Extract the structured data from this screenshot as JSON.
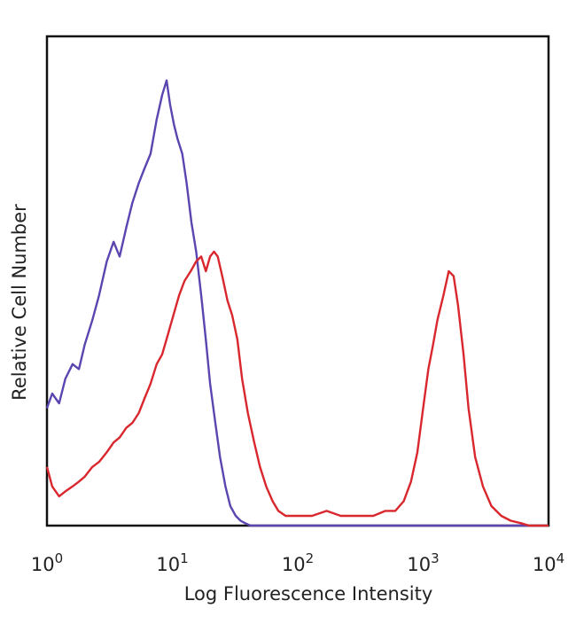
{
  "chart_data": {
    "type": "line",
    "title": "",
    "xlabel": "Log Fluorescence Intensity",
    "ylabel": "Relative Cell Number",
    "x_scale": "log",
    "xlim": [
      1,
      10000
    ],
    "ylim": [
      0,
      100
    ],
    "x_ticks": [
      {
        "base": "10",
        "exp": "0"
      },
      {
        "base": "10",
        "exp": "1"
      },
      {
        "base": "10",
        "exp": "2"
      },
      {
        "base": "10",
        "exp": "3"
      },
      {
        "base": "10",
        "exp": "4"
      }
    ],
    "grid": false,
    "legend": "none",
    "series": [
      {
        "color": "#5b45b0",
        "x": [
          1.0,
          1.1,
          1.25,
          1.4,
          1.6,
          1.8,
          2.0,
          2.3,
          2.6,
          3.0,
          3.4,
          3.8,
          4.3,
          4.8,
          5.4,
          6.0,
          6.7,
          7.5,
          8.3,
          9.0,
          9.6,
          10.3,
          11.0,
          12.0,
          13.0,
          14.2,
          15.5,
          17.0,
          18.5,
          20.0,
          22.0,
          24.0,
          26.5,
          29.0,
          32.0,
          35.0,
          38.0,
          42.0,
          50.0,
          100.0,
          1000.0,
          10000.0
        ],
        "y": [
          24,
          27,
          25,
          30,
          33,
          32,
          37,
          42,
          47,
          54,
          58,
          55,
          61,
          66,
          70,
          73,
          76,
          83,
          88,
          91,
          86,
          82,
          79,
          76,
          70,
          62,
          56,
          47,
          38,
          29,
          21,
          14,
          8,
          4,
          2,
          1,
          0.5,
          0,
          0,
          0,
          0,
          0
        ]
      },
      {
        "color": "#d9272e",
        "x": [
          1.0,
          1.1,
          1.25,
          1.4,
          1.6,
          1.8,
          2.0,
          2.3,
          2.6,
          3.0,
          3.4,
          3.8,
          4.3,
          4.8,
          5.4,
          6.0,
          6.7,
          7.5,
          8.3,
          9.2,
          10.2,
          11.3,
          12.5,
          14.0,
          15.5,
          17.0,
          18.5,
          20.0,
          21.5,
          23.0,
          25.0,
          27.5,
          30.0,
          33.0,
          36.0,
          40.0,
          45.0,
          50.0,
          56.0,
          63.0,
          70.0,
          80.0,
          100.0,
          130.0,
          170.0,
          220.0,
          300.0,
          400.0,
          500.0,
          600.0,
          700.0,
          800.0,
          900.0,
          1000.0,
          1100.0,
          1200.0,
          1300.0,
          1450.0,
          1600.0,
          1750.0,
          1900.0,
          2100.0,
          2300.0,
          2600.0,
          3000.0,
          3500.0,
          4200.0,
          5000.0,
          6000.0,
          7000.0,
          8000.0,
          10000.0
        ],
        "y": [
          12,
          8,
          6,
          7,
          8,
          9,
          10,
          12,
          13,
          15,
          17,
          18,
          20,
          21,
          23,
          26,
          29,
          33,
          35,
          39,
          43,
          47,
          50,
          52,
          54,
          55,
          52,
          55,
          56,
          55,
          51,
          46,
          43,
          38,
          30,
          23,
          17,
          12,
          8,
          5,
          3,
          2,
          2,
          2,
          3,
          2,
          2,
          2,
          3,
          3,
          5,
          9,
          15,
          24,
          32,
          37,
          42,
          47,
          52,
          51,
          45,
          35,
          24,
          14,
          8,
          4,
          2,
          1,
          0.5,
          0,
          0,
          0
        ]
      }
    ]
  }
}
